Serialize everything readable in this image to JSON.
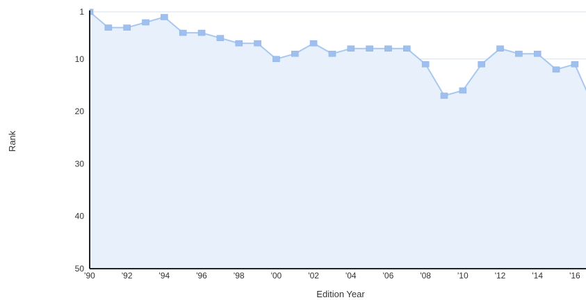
{
  "chart_data": {
    "type": "area",
    "title": "",
    "xlabel": "Edition Year",
    "ylabel": "Rank",
    "y_reversed": true,
    "ylim": [
      1,
      50
    ],
    "xlim": [
      1990,
      2016.6
    ],
    "grid": true,
    "legend": "none",
    "y_ticks": [
      {
        "value": 1,
        "label": "1"
      },
      {
        "value": 10,
        "label": "10"
      },
      {
        "value": 20,
        "label": "20"
      },
      {
        "value": 30,
        "label": "30"
      },
      {
        "value": 40,
        "label": "40"
      },
      {
        "value": 50,
        "label": "50"
      }
    ],
    "x_ticks": [
      {
        "value": 1990,
        "label": "'90"
      },
      {
        "value": 1992,
        "label": "'92"
      },
      {
        "value": 1994,
        "label": "'94"
      },
      {
        "value": 1996,
        "label": "'96"
      },
      {
        "value": 1998,
        "label": "'98"
      },
      {
        "value": 2000,
        "label": "'00"
      },
      {
        "value": 2002,
        "label": "'02"
      },
      {
        "value": 2004,
        "label": "'04"
      },
      {
        "value": 2006,
        "label": "'06"
      },
      {
        "value": 2008,
        "label": "'08"
      },
      {
        "value": 2010,
        "label": "'10"
      },
      {
        "value": 2012,
        "label": "'12"
      },
      {
        "value": 2014,
        "label": "'14"
      },
      {
        "value": 2016,
        "label": "'16"
      }
    ],
    "x": [
      1990,
      1991,
      1992,
      1993,
      1994,
      1995,
      1996,
      1997,
      1998,
      1999,
      2000,
      2001,
      2002,
      2003,
      2004,
      2005,
      2006,
      2007,
      2008,
      2009,
      2010,
      2011,
      2012,
      2013,
      2014,
      2015,
      2016,
      2017
    ],
    "series": [
      {
        "values": [
          1,
          4,
          4,
          3,
          2,
          5,
          5,
          6,
          7,
          7,
          10,
          9,
          7,
          9,
          8,
          8,
          8,
          8,
          11,
          17,
          16,
          11,
          8,
          9,
          9,
          12,
          11,
          19
        ]
      }
    ],
    "colors": {
      "line": "#a9c8ef",
      "marker": "#9fc0ee",
      "fill": "#e8f0fc",
      "grid": "#d7e0ea",
      "axis": "#222222"
    }
  }
}
